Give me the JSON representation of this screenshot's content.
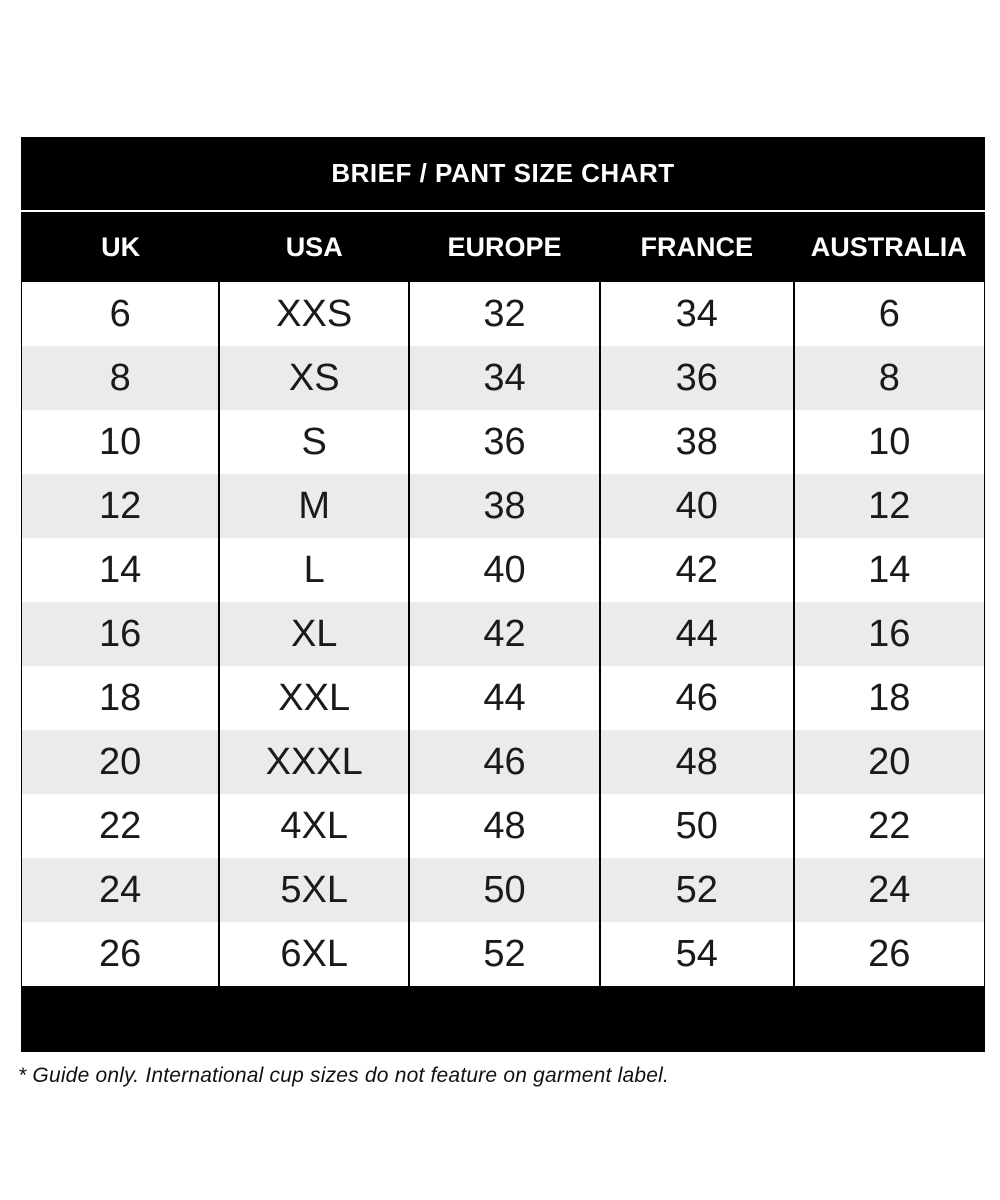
{
  "chart_data": {
    "type": "table",
    "title": "BRIEF / PANT SIZE CHART",
    "columns": [
      "UK",
      "USA",
      "EUROPE",
      "FRANCE",
      "AUSTRALIA"
    ],
    "rows": [
      [
        "6",
        "XXS",
        "32",
        "34",
        "6"
      ],
      [
        "8",
        "XS",
        "34",
        "36",
        "8"
      ],
      [
        "10",
        "S",
        "36",
        "38",
        "10"
      ],
      [
        "12",
        "M",
        "38",
        "40",
        "12"
      ],
      [
        "14",
        "L",
        "40",
        "42",
        "14"
      ],
      [
        "16",
        "XL",
        "42",
        "44",
        "16"
      ],
      [
        "18",
        "XXL",
        "44",
        "46",
        "18"
      ],
      [
        "20",
        "XXXL",
        "46",
        "48",
        "20"
      ],
      [
        "22",
        "4XL",
        "48",
        "50",
        "22"
      ],
      [
        "24",
        "5XL",
        "50",
        "52",
        "24"
      ],
      [
        "26",
        "6XL",
        "52",
        "54",
        "26"
      ]
    ],
    "footnote": "* Guide only. International cup sizes do not feature on garment label.",
    "layout_hints": {
      "row_striping": "white / light-gray alternating, starting white",
      "header_style": "black band, white bold text",
      "grid": "vertical dividers only"
    }
  },
  "colors": {
    "band": "#000000",
    "band_text": "#ffffff",
    "row": "#ffffff",
    "row_alt": "#ebebeb",
    "body_text": "#1a1a1a",
    "divider": "#000000"
  },
  "column_width_percents": [
    20.54,
    19.71,
    19.81,
    20.12,
    19.82
  ]
}
